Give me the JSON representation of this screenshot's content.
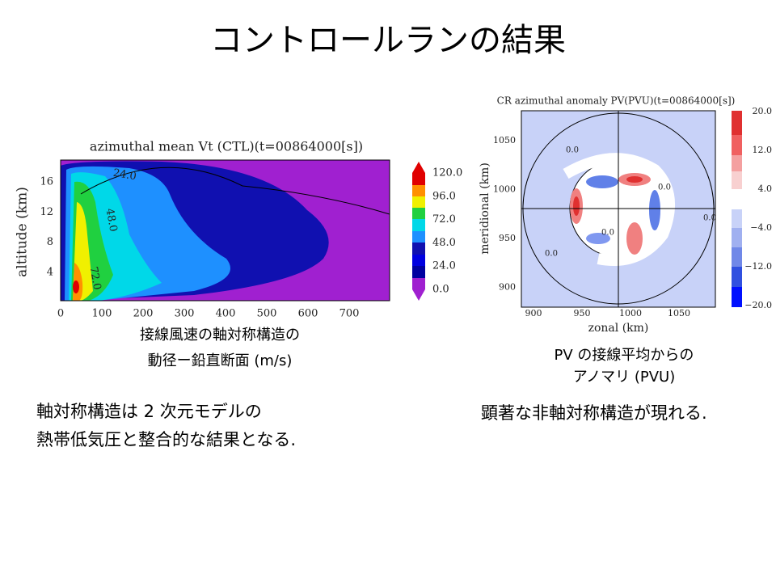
{
  "title": "コントロールランの結果",
  "left_figure": {
    "plot_title": "azimuthal mean Vt (CTL)(t=00864000[s])",
    "y_label": "altitude (km)",
    "y_ticks": [
      "16",
      "12",
      "8",
      "4"
    ],
    "x_ticks": [
      "0",
      "100",
      "200",
      "300",
      "400",
      "500",
      "600",
      "700"
    ],
    "colorbar_labels": [
      "120.0",
      "96.0",
      "72.0",
      "48.0",
      "24.0",
      "0.0"
    ],
    "contour_labels": [
      "24.0",
      "48.0",
      "72.0"
    ],
    "caption": [
      "接線風速の軸対称構造の",
      "動径ー鉛直断面 (m/s)"
    ]
  },
  "right_figure": {
    "plot_title": "CR azimuthal anomaly PV(PVU)(t=00864000[s])",
    "y_label": "meridional (km)",
    "x_label": "zonal (km)",
    "y_ticks": [
      "1050",
      "1000",
      "950",
      "900"
    ],
    "x_ticks": [
      "900",
      "950",
      "1000",
      "1050"
    ],
    "colorbar_labels": [
      "20.0",
      "12.0",
      "4.0",
      "−4.0",
      "−12.0",
      "−20.0"
    ],
    "contour_labels": [
      "0.0",
      "0.0",
      "0.0",
      "0.0",
      "0.0"
    ],
    "caption": [
      "PV の接線平均からの",
      "アノマリ (PVU)"
    ]
  },
  "left_text": [
    "軸対称構造は 2 次元モデルの",
    "熱帯低気圧と整合的な結果となる."
  ],
  "right_text": [
    "顕著な非軸対称構造が現れる."
  ]
}
